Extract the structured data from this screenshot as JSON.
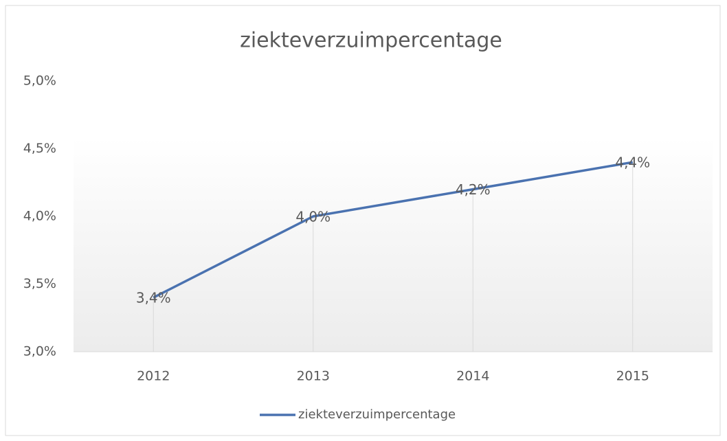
{
  "chart_data": {
    "type": "line",
    "title": "ziekteverzuimpercentage",
    "categories": [
      "2012",
      "2013",
      "2014",
      "2015"
    ],
    "series": [
      {
        "name": "ziekteverzuimpercentage",
        "color": "#4a72b0",
        "values": [
          3.4,
          4.0,
          4.2,
          4.4
        ],
        "value_labels": [
          "3,4%",
          "4,0%",
          "4,2%",
          "4,4%"
        ]
      }
    ],
    "ylim": [
      3.0,
      5.0
    ],
    "yticks": [
      {
        "value": 3.0,
        "label": "3,0%"
      },
      {
        "value": 3.5,
        "label": "3,5%"
      },
      {
        "value": 4.0,
        "label": "4,0%"
      },
      {
        "value": 4.5,
        "label": "4,5%"
      },
      {
        "value": 5.0,
        "label": "5,0%"
      }
    ],
    "legend": "bottom"
  }
}
